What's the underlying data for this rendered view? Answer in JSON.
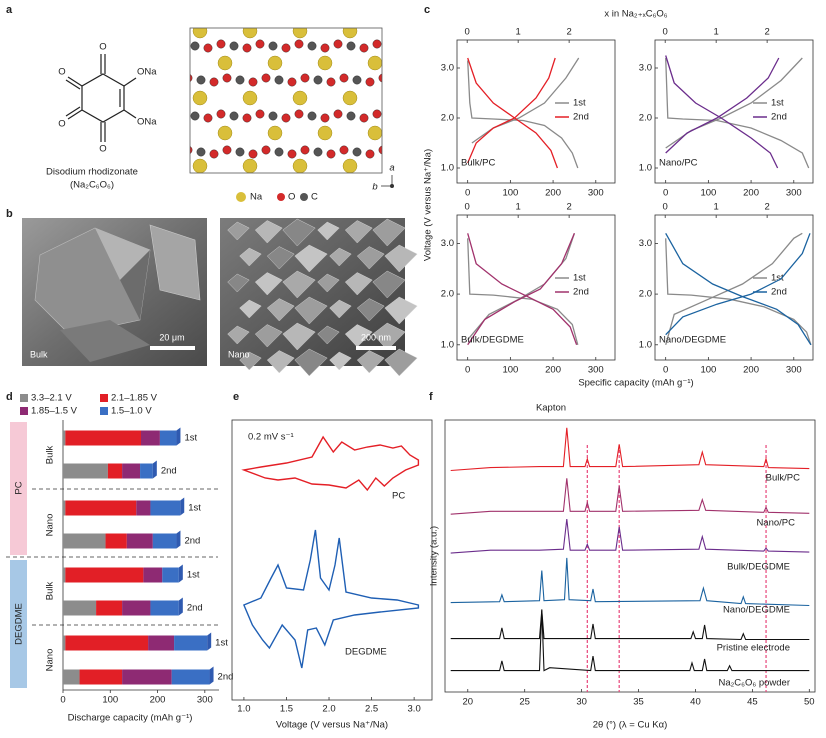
{
  "panel_labels": [
    "a",
    "b",
    "c",
    "d",
    "e",
    "f"
  ],
  "panel_a": {
    "atom_labels": [
      "O",
      "O",
      "ONa",
      "ONa",
      "O",
      "O"
    ],
    "name": "Disodium rhodizonate",
    "formula": "(Na₂C₆O₆)",
    "legend": [
      "Na",
      "O",
      "C"
    ],
    "axes": [
      "a",
      "b"
    ]
  },
  "panel_b": {
    "images": [
      {
        "label": "Bulk",
        "scale": "20 μm"
      },
      {
        "label": "Nano",
        "scale": "200 nm"
      }
    ]
  },
  "panel_c": {
    "x_title": "x in Na₂₊ₓC₆O₆",
    "ylabel": "Voltage (V versus Na⁺/Na)",
    "xlabel": "Specific capacity (mAh g⁻¹)"
  },
  "chart_data": [
    {
      "type": "line",
      "label": "Bulk/PC",
      "xlim": [
        -25,
        345
      ],
      "xticks": [
        0,
        100,
        200,
        300
      ],
      "x2lim": [
        -0.2,
        2.9
      ],
      "x2ticks": [
        0,
        1,
        2
      ],
      "ylim": [
        0.7,
        3.56
      ],
      "yticks": [
        {
          "value": 1,
          "label": "1.0"
        },
        {
          "value": 2,
          "label": "2.0"
        },
        {
          "value": 3,
          "label": "3.0"
        }
      ],
      "series": [
        {
          "name": "1st",
          "color": "#8a8a8a",
          "x": [
            0,
            5,
            10,
            60,
            130,
            180,
            220,
            245,
            258,
            null,
            10,
            60,
            120,
            180,
            230,
            260
          ],
          "values": [
            3.15,
            2.3,
            2.0,
            1.98,
            1.95,
            1.85,
            1.6,
            1.3,
            1.0,
            null,
            1.5,
            1.8,
            2.0,
            2.3,
            2.8,
            3.2
          ]
        },
        {
          "name": "2nd",
          "color": "#e41f26",
          "x": [
            0,
            20,
            60,
            110,
            160,
            195,
            210,
            null,
            0,
            20,
            60,
            110,
            160,
            190,
            205
          ],
          "values": [
            3.2,
            2.7,
            2.3,
            2.0,
            1.7,
            1.35,
            1.0,
            null,
            1.1,
            1.5,
            1.8,
            2.0,
            2.4,
            2.8,
            3.2
          ]
        }
      ]
    },
    {
      "type": "line",
      "label": "Nano/PC",
      "xlim": [
        -25,
        345
      ],
      "xticks": [
        0,
        100,
        200,
        300
      ],
      "x2lim": [
        -0.2,
        2.9
      ],
      "x2ticks": [
        0,
        1,
        2
      ],
      "ylim": [
        0.7,
        3.56
      ],
      "yticks": [
        {
          "value": 1,
          "label": "1.0"
        },
        {
          "value": 2,
          "label": "2.0"
        },
        {
          "value": 3,
          "label": "3.0"
        }
      ],
      "series": [
        {
          "name": "1st",
          "color": "#8a8a8a",
          "x": [
            0,
            5,
            40,
            120,
            200,
            270,
            320,
            335,
            null,
            0,
            60,
            130,
            200,
            270,
            320
          ],
          "values": [
            3.2,
            2.0,
            1.98,
            1.95,
            1.8,
            1.55,
            1.3,
            1.0,
            null,
            1.4,
            1.75,
            2.0,
            2.3,
            2.75,
            3.2
          ]
        },
        {
          "name": "2nd",
          "color": "#6b2d8c",
          "x": [
            0,
            20,
            70,
            130,
            200,
            245,
            262,
            null,
            0,
            50,
            120,
            190,
            240,
            265
          ],
          "values": [
            3.25,
            2.7,
            2.3,
            2.0,
            1.6,
            1.3,
            1.0,
            null,
            1.3,
            1.7,
            2.0,
            2.4,
            2.8,
            3.2
          ]
        }
      ]
    },
    {
      "type": "line",
      "label": "Bulk/DEGDME",
      "xlim": [
        -25,
        345
      ],
      "xticks": [
        0,
        100,
        200,
        300
      ],
      "x2lim": [
        -0.2,
        2.9
      ],
      "x2ticks": [
        0,
        1,
        2
      ],
      "ylim": [
        0.7,
        3.56
      ],
      "yticks": [
        {
          "value": 1,
          "label": "1.0"
        },
        {
          "value": 2,
          "label": "2.0"
        },
        {
          "value": 3,
          "label": "3.0"
        }
      ],
      "series": [
        {
          "name": "1st",
          "color": "#8a8a8a",
          "x": [
            0,
            5,
            60,
            150,
            210,
            245,
            258,
            null,
            0,
            50,
            120,
            180,
            230,
            250
          ],
          "values": [
            3.1,
            2.0,
            1.98,
            1.9,
            1.7,
            1.4,
            1.0,
            null,
            1.1,
            1.6,
            1.9,
            2.2,
            2.7,
            3.2
          ]
        },
        {
          "name": "2nd",
          "color": "#a1326c",
          "x": [
            0,
            20,
            80,
            140,
            200,
            240,
            255,
            null,
            0,
            40,
            110,
            170,
            220,
            250
          ],
          "values": [
            3.2,
            2.6,
            2.2,
            1.95,
            1.7,
            1.35,
            1.0,
            null,
            1.0,
            1.5,
            1.85,
            2.1,
            2.6,
            3.2
          ]
        }
      ]
    },
    {
      "type": "line",
      "label": "Nano/DEGDME",
      "xlim": [
        -25,
        345
      ],
      "xticks": [
        0,
        100,
        200,
        300
      ],
      "x2lim": [
        -0.2,
        2.9
      ],
      "x2ticks": [
        0,
        1,
        2
      ],
      "ylim": [
        0.7,
        3.56
      ],
      "yticks": [
        {
          "value": 1,
          "label": "1.0"
        },
        {
          "value": 2,
          "label": "2.0"
        },
        {
          "value": 3,
          "label": "3.0"
        }
      ],
      "series": [
        {
          "name": "1st",
          "color": "#8a8a8a",
          "x": [
            0,
            5,
            60,
            150,
            230,
            300,
            330,
            340,
            null,
            0,
            20,
            100,
            180,
            250,
            300,
            320
          ],
          "values": [
            3.1,
            2.0,
            1.98,
            1.9,
            1.75,
            1.5,
            1.25,
            1.0,
            null,
            1.0,
            1.6,
            1.9,
            2.2,
            2.6,
            3.1,
            3.2
          ]
        },
        {
          "name": "2nd",
          "color": "#1b63a0",
          "x": [
            0,
            40,
            110,
            180,
            260,
            310,
            340,
            null,
            0,
            40,
            120,
            200,
            270,
            320,
            338
          ],
          "values": [
            3.2,
            2.6,
            2.2,
            1.95,
            1.7,
            1.4,
            1.0,
            null,
            1.2,
            1.55,
            1.8,
            2.0,
            2.3,
            2.8,
            3.2
          ]
        }
      ]
    },
    {
      "type": "bar",
      "orientation": "horizontal",
      "xlabel": "Discharge capacity (mAh g⁻¹)",
      "xlim": [
        0,
        330
      ],
      "xticks": [
        0,
        100,
        200,
        300
      ],
      "groups": [
        {
          "name": "PC",
          "color": "#f6c9d6",
          "samples": [
            "Bulk",
            "Nano"
          ]
        },
        {
          "name": "DEGDME",
          "color": "#a7c8e6",
          "samples": [
            "Bulk",
            "Nano"
          ]
        }
      ],
      "categories": [
        "1st",
        "2nd",
        "1st",
        "2nd",
        "1st",
        "2nd",
        "1st",
        "2nd"
      ],
      "series": [
        {
          "name": "3.3–2.1 V",
          "color": "#8c8c8c",
          "values": [
            5,
            95,
            5,
            90,
            5,
            70,
            5,
            35
          ]
        },
        {
          "name": "2.1–1.85 V",
          "color": "#e21f26",
          "values": [
            160,
            30,
            150,
            45,
            165,
            55,
            175,
            90
          ]
        },
        {
          "name": "1.85–1.5 V",
          "color": "#8e2a73",
          "values": [
            40,
            38,
            30,
            55,
            40,
            60,
            55,
            105
          ]
        },
        {
          "name": "1.5–1.0 V",
          "color": "#3a6fc4",
          "values": [
            35,
            27,
            63,
            50,
            35,
            60,
            70,
            80
          ]
        }
      ]
    },
    {
      "type": "line",
      "note": "0.2 mV s⁻¹",
      "xlabel": "Voltage (V versus Na⁺/Na)",
      "xlim": [
        0.86,
        3.21
      ],
      "xticks": [
        {
          "value": 1,
          "label": "1.0"
        },
        1.5,
        {
          "value": 2,
          "label": "2.0"
        },
        2.5,
        {
          "value": 3,
          "label": "3.0"
        }
      ],
      "ylim": [
        0,
        28
      ],
      "series": [
        {
          "name": "PC",
          "color": "#e41f26",
          "x": [
            1.0,
            1.2,
            1.5,
            1.8,
            1.93,
            2.05,
            2.15,
            2.3,
            2.45,
            2.6,
            2.75,
            2.85,
            2.95,
            3.05,
            3.05,
            2.9,
            2.75,
            2.65,
            2.55,
            2.45,
            2.35,
            2.2,
            2.0,
            1.8,
            1.6,
            1.4,
            1.25,
            1.0
          ],
          "values": [
            23.0,
            23.3,
            23.7,
            24.3,
            26.3,
            24.8,
            25.8,
            25.0,
            25.3,
            25.5,
            25.2,
            25.4,
            24.5,
            24.0,
            23.5,
            23.0,
            22.2,
            21.4,
            22.2,
            21.0,
            22.0,
            21.2,
            21.5,
            21.6,
            22.2,
            22.0,
            22.2,
            23.0
          ]
        },
        {
          "name": "DEGDME",
          "color": "#1f5fb4",
          "x": [
            1.0,
            1.2,
            1.32,
            1.4,
            1.5,
            1.7,
            1.78,
            1.84,
            1.9,
            2.0,
            2.07,
            2.12,
            2.2,
            2.5,
            2.8,
            3.05,
            3.05,
            2.6,
            2.3,
            2.05,
            1.95,
            1.85,
            1.75,
            1.68,
            1.6,
            1.45,
            1.3,
            1.22,
            1.1,
            1.0
          ],
          "values": [
            9.5,
            10.2,
            12.2,
            13.5,
            11.2,
            11.0,
            14.0,
            17.0,
            12.2,
            11.0,
            13.5,
            16.2,
            10.8,
            10.2,
            10.0,
            9.5,
            9.2,
            8.8,
            8.5,
            8.0,
            5.5,
            7.2,
            7.0,
            3.2,
            6.0,
            7.5,
            5.2,
            6.0,
            7.5,
            9.5
          ]
        }
      ]
    },
    {
      "type": "line",
      "xlabel": "2θ (°) (λ = Cu Kα)",
      "ylabel": "Intensity (a.u.)",
      "annotation": "Kapton",
      "xlim": [
        18,
        50.5
      ],
      "xticks": [
        20,
        25,
        30,
        35,
        40,
        45,
        50
      ],
      "ylim": [
        0,
        280
      ],
      "reference_lines": [
        30.5,
        33.3,
        46.2
      ],
      "reference_color": "#e8457a",
      "series": [
        {
          "name": "Bulk/PC",
          "color": "#e41f26",
          "x": [
            18.5,
            22,
            26.3,
            28.4,
            28.7,
            29.0,
            30.3,
            30.5,
            30.7,
            33.0,
            33.3,
            33.6,
            40.3,
            40.6,
            40.9,
            46.0,
            46.2,
            46.4,
            50
          ],
          "values": [
            228,
            231,
            232,
            232,
            272,
            232,
            232,
            240,
            232,
            232,
            255,
            232,
            234,
            247,
            234,
            232,
            240,
            231,
            230
          ]
        },
        {
          "name": "Nano/PC",
          "color": "#a1326c",
          "x": [
            18.5,
            22,
            26.3,
            28.4,
            28.7,
            29.0,
            30.3,
            30.5,
            30.7,
            33.0,
            33.3,
            33.6,
            40.3,
            40.6,
            40.9,
            46.0,
            46.2,
            46.4,
            50
          ],
          "values": [
            183,
            186,
            186,
            186,
            220,
            186,
            186,
            195,
            186,
            186,
            212,
            186,
            187,
            198,
            187,
            185,
            190,
            185,
            184
          ]
        },
        {
          "name": "Bulk/DEGDME",
          "color": "#6b2d8c",
          "x": [
            18.5,
            22,
            26.3,
            28.4,
            28.7,
            29.0,
            30.3,
            30.5,
            30.7,
            33.0,
            33.3,
            33.6,
            40.3,
            40.6,
            40.9,
            46.0,
            46.2,
            46.4,
            50
          ],
          "values": [
            143,
            146,
            146,
            147,
            178,
            146,
            146,
            152,
            146,
            146,
            170,
            146,
            147,
            160,
            147,
            145,
            148,
            145,
            144
          ]
        },
        {
          "name": "Nano/DEGDME",
          "color": "#1b63a0",
          "x": [
            18.5,
            22.8,
            23.0,
            23.2,
            26.3,
            26.5,
            26.7,
            28.5,
            28.7,
            28.9,
            30.8,
            31.0,
            31.2,
            40.4,
            40.7,
            41.0,
            44.0,
            44.2,
            44.4,
            50
          ],
          "values": [
            92,
            93,
            100,
            93,
            94,
            125,
            94,
            95,
            138,
            95,
            94,
            106,
            93,
            94,
            107,
            94,
            91,
            98,
            91,
            89
          ]
        },
        {
          "name": "Pristine electrode",
          "color": "#111111",
          "x": [
            18.5,
            22.8,
            23.0,
            23.2,
            26.3,
            26.5,
            26.7,
            30.8,
            31.0,
            31.2,
            39.6,
            39.8,
            40.0,
            40.6,
            40.8,
            41.0,
            44.0,
            44.2,
            44.4,
            50
          ],
          "values": [
            55,
            55,
            66,
            55,
            55,
            84,
            55,
            55,
            70,
            55,
            55,
            62,
            55,
            55,
            69,
            55,
            54,
            60,
            54,
            54
          ]
        },
        {
          "name": "Na₂C₆O₆ powder",
          "color": "#111111",
          "x": [
            18.5,
            22.8,
            23.0,
            23.2,
            26.3,
            26.5,
            26.7,
            27.2,
            30.8,
            31.0,
            31.2,
            39.5,
            39.7,
            39.9,
            40.6,
            40.8,
            41.0,
            42.8,
            43.0,
            43.2,
            50
          ],
          "values": [
            22,
            22,
            32,
            22,
            22,
            85,
            22,
            25,
            22,
            37,
            22,
            22,
            30,
            22,
            22,
            34,
            22,
            22,
            27,
            22,
            22
          ]
        }
      ]
    }
  ]
}
